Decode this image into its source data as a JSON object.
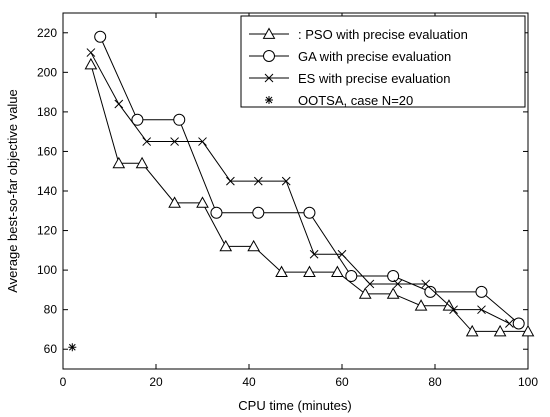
{
  "chart_data": {
    "type": "line",
    "title": "",
    "xlabel": "CPU time (minutes)",
    "ylabel": "Average best-so-far objective value",
    "xlim": [
      0,
      100
    ],
    "ylim": [
      50,
      230
    ],
    "xticks": [
      0,
      20,
      40,
      60,
      80,
      100
    ],
    "yticks": [
      60,
      80,
      100,
      120,
      140,
      160,
      180,
      200,
      220
    ],
    "grid": false,
    "legend_position": "top-right",
    "series": [
      {
        "name": ": PSO with precise evaluation",
        "marker": "triangle",
        "x": [
          6,
          12,
          17,
          24,
          30,
          35,
          41,
          47,
          53,
          59,
          65,
          71,
          77,
          83,
          88,
          94,
          100
        ],
        "y": [
          204,
          154,
          154,
          134,
          134,
          112,
          112,
          99,
          99,
          99,
          88,
          88,
          82,
          82,
          69,
          69,
          69
        ]
      },
      {
        "name": "GA with precise evaluation",
        "marker": "circle",
        "x": [
          8,
          16,
          25,
          33,
          42,
          53,
          62,
          71,
          79,
          90,
          98
        ],
        "y": [
          218,
          176,
          176,
          129,
          129,
          129,
          97,
          97,
          89,
          89,
          73
        ]
      },
      {
        "name": "ES with precise evaluation",
        "marker": "x",
        "x": [
          6,
          12,
          18,
          24,
          30,
          36,
          42,
          48,
          54,
          60,
          66,
          72,
          78,
          84,
          90,
          96
        ],
        "y": [
          210,
          184,
          165,
          165,
          165,
          145,
          145,
          145,
          108,
          108,
          93,
          93,
          93,
          80,
          80,
          73
        ]
      },
      {
        "name": "OOTSA, case N=20",
        "marker": "star",
        "x": [
          2
        ],
        "y": [
          61
        ]
      }
    ]
  }
}
